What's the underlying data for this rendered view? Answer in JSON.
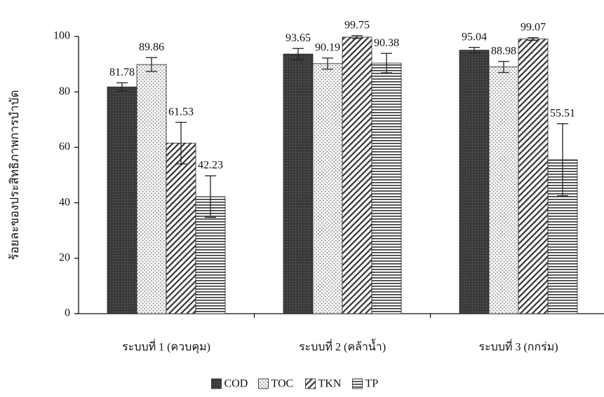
{
  "chart_data": {
    "type": "bar",
    "ylabel": "ร้อยละของประสิทธิภาพการบำบัด",
    "categories": [
      "ระบบที่ 1 (ควบคุม)",
      "ระบบที่ 2 (คล้าน้ำ)",
      "ระบบที่ 3 (กกร่ม)"
    ],
    "series": [
      {
        "name": "COD",
        "color": "#3a3a3a",
        "values": [
          81.78,
          93.65,
          95.04
        ],
        "errors": [
          1.5,
          2,
          1
        ]
      },
      {
        "name": "TOC",
        "color": "#555555",
        "values": [
          89.86,
          90.19,
          88.98
        ],
        "errors": [
          2.5,
          2,
          2
        ]
      },
      {
        "name": "TKN",
        "color": "#333333",
        "values": [
          61.53,
          99.75,
          99.07
        ],
        "errors": [
          7.5,
          0.5,
          0.5
        ]
      },
      {
        "name": "TP",
        "color": "#333333",
        "values": [
          42.23,
          90.38,
          55.51
        ],
        "errors": [
          7.5,
          3.5,
          13
        ]
      }
    ],
    "ylim": [
      0,
      100
    ],
    "yticks": [
      0,
      20,
      40,
      60,
      80,
      100
    ]
  }
}
